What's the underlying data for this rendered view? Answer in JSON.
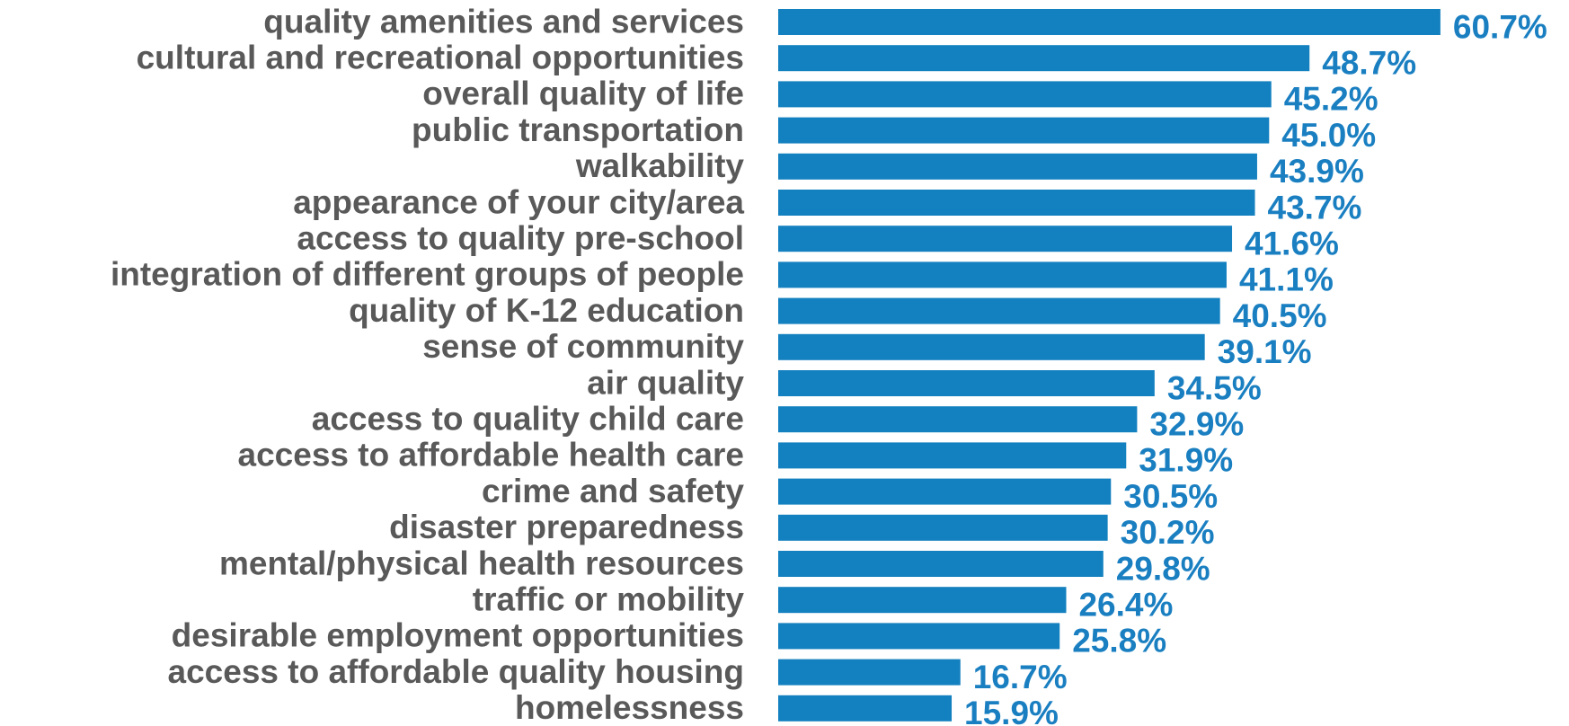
{
  "chart_data": {
    "type": "bar",
    "orientation": "horizontal",
    "color": "#1380bf",
    "categories": [
      "quality amenities and services",
      "cultural and recreational opportunities",
      "overall quality of life",
      "public transportation",
      "walkability",
      "appearance of your city/area",
      "access to quality pre-school",
      "integration of different groups of people",
      "quality of K-12 education",
      "sense of community",
      "air quality",
      "access to quality child care",
      "access to affordable health care",
      "crime and safety",
      "disaster preparedness",
      "mental/physical health resources",
      "traffic or mobility",
      "desirable employment opportunities",
      "access to affordable quality housing",
      "homelessness"
    ],
    "values": [
      60.7,
      48.7,
      45.2,
      45.0,
      43.9,
      43.7,
      41.6,
      41.1,
      40.5,
      39.1,
      34.5,
      32.9,
      31.9,
      30.5,
      30.2,
      29.8,
      26.4,
      25.8,
      16.7,
      15.9
    ],
    "value_labels": [
      "60.7%",
      "48.7%",
      "45.2%",
      "45.0%",
      "43.9%",
      "43.7%",
      "41.6%",
      "41.1%",
      "40.5%",
      "39.1%",
      "34.5%",
      "32.9%",
      "31.9%",
      "30.5%",
      "30.2%",
      "29.8%",
      "26.4%",
      "25.8%",
      "16.7%",
      "15.9%"
    ]
  }
}
